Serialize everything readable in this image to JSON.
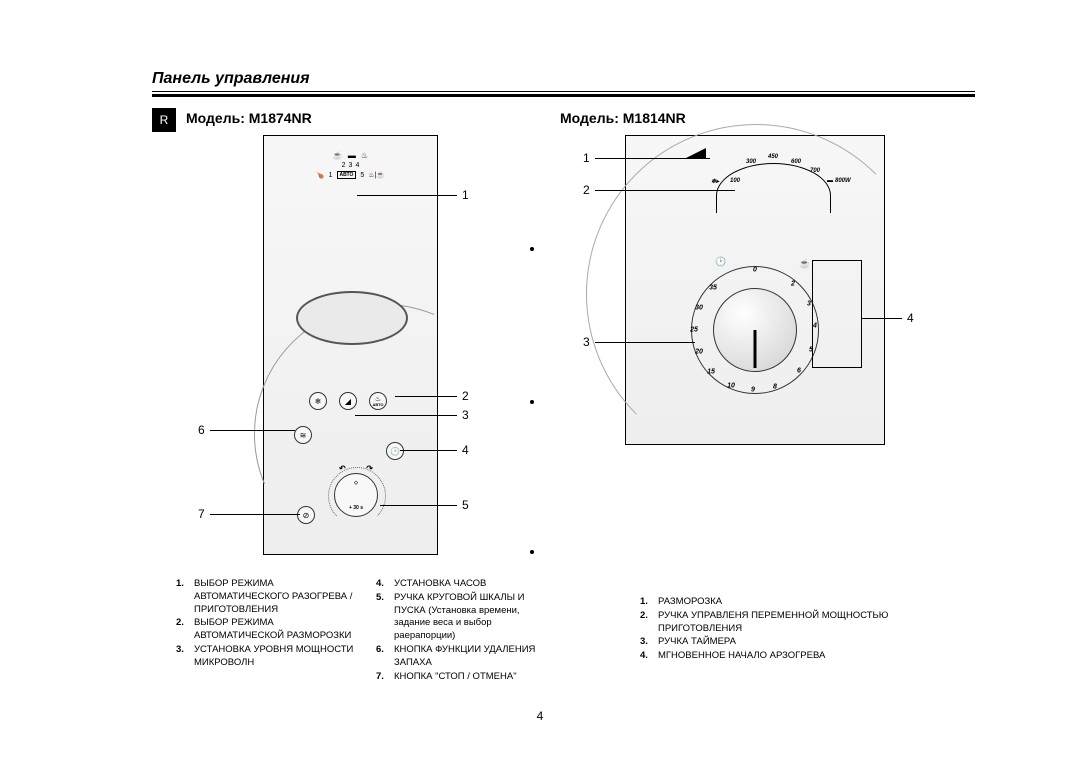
{
  "page": {
    "title": "Панель управления",
    "tab": "R",
    "number": "4"
  },
  "models": {
    "left_label": "Модель: M1874NR",
    "right_label": "Модель: M1814NR"
  },
  "left_panel": {
    "mode_row": {
      "icons": [
        "☕",
        "▬",
        "♨"
      ],
      "numbers_top": [
        "2",
        "3",
        "4"
      ],
      "bottom_left_icon": "🍗",
      "bottom_left_num": "1",
      "bottom_right_icon": "♨|☕",
      "bottom_right_num": "5",
      "avto_label": "АВТО"
    },
    "buttons": {
      "defrost_icon": "❄",
      "power_icon": "◢",
      "auto_icon": "♨",
      "auto_label": "АВТО",
      "clock_icon": "🕑",
      "cancel_icon": "⊘",
      "quick_icon": "≋"
    },
    "dial": {
      "center_label": "+ 30 s",
      "diamond": "◇"
    },
    "callouts": [
      "1",
      "2",
      "3",
      "4",
      "5",
      "6",
      "7"
    ]
  },
  "right_panel": {
    "power": {
      "levels": [
        "100",
        "300",
        "450",
        "600",
        "700",
        "800W"
      ],
      "defrost_icon": "❄▸"
    },
    "dial": {
      "minutes": [
        "0",
        "2",
        "3",
        "4",
        "5",
        "6",
        "8",
        "9",
        "10",
        "15",
        "20",
        "25",
        "30",
        "35"
      ],
      "clock_icon": "🕑",
      "cup_icon": "☕"
    },
    "callouts": [
      "1",
      "2",
      "3",
      "4"
    ]
  },
  "legend_left_a": [
    "ВЫБОР РЕЖИМА АВТОМАТИЧЕСКОГО РАЗОГРЕВА / ПРИГОТОВЛЕНИЯ",
    "ВЫБОР РЕЖИМА АВТОМАТИЧЕСКОЙ РАЗМОРОЗКИ",
    "УСТАНОВКА УРОВНЯ МОЩНОСТИ МИКРОВОЛН"
  ],
  "legend_left_b": [
    "УСТАНОВКА ЧАСОВ",
    "РУЧКА КРУГОВОЙ ШКАЛЫ И ПУСКА (Установка времени, задание веса и выбор раерапорции)",
    "КНОПКА ФУНКЦИИ  УДАЛЕНИЯ ЗАПАХА",
    "КНОПКА \"СТОП / ОТМЕНА\""
  ],
  "legend_left_b_start": 4,
  "legend_right": [
    "РАЗМОРОЗКА",
    "РУЧКА УПРАВЛЕНЯ ПЕРЕМЕННОЙ МОЩНОСТЬЮ ПРИГОТОВЛЕНИЯ",
    "РУЧКА ТАЙМЕРА",
    "МГНОВЕННОЕ НАЧАЛО АРЗОГРЕВА"
  ]
}
